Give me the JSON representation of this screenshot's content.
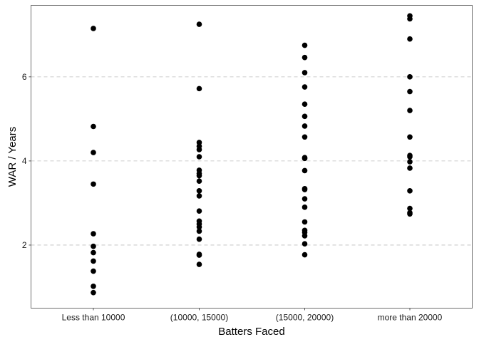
{
  "chart_data": {
    "type": "scatter",
    "title": "",
    "xlabel": "Batters Faced",
    "ylabel": "WAR / Years",
    "categories": [
      "Less than 10000",
      "(10000, 15000)",
      "(15000, 20000)",
      "more than 20000"
    ],
    "ylim": [
      0.5,
      7.7
    ],
    "yticks": [
      2,
      4,
      6
    ],
    "grid": "horizontal-major-dashed",
    "legend": "none",
    "point_color": "#000000",
    "points": [
      {
        "category": "Less than 10000",
        "values": [
          7.15,
          4.82,
          4.2,
          3.45,
          2.27,
          1.97,
          1.82,
          1.62,
          1.38,
          1.02,
          0.87
        ]
      },
      {
        "category": "(10000, 15000)",
        "values": [
          7.25,
          5.72,
          4.44,
          4.35,
          4.27,
          4.1,
          3.78,
          3.7,
          3.65,
          3.52,
          3.29,
          3.17,
          2.81,
          2.57,
          2.5,
          2.43,
          2.33,
          2.14,
          1.78,
          1.76,
          1.54
        ]
      },
      {
        "category": "(15000, 20000)",
        "values": [
          6.75,
          6.46,
          6.1,
          5.76,
          5.35,
          5.06,
          4.83,
          4.57,
          4.08,
          4.06,
          3.77,
          3.34,
          3.32,
          3.1,
          2.9,
          2.55,
          2.35,
          2.3,
          2.22,
          2.03,
          1.77
        ]
      },
      {
        "category": "more than 20000",
        "values": [
          7.45,
          7.38,
          6.9,
          6.0,
          5.65,
          5.2,
          4.57,
          4.13,
          4.1,
          3.98,
          3.83,
          3.29,
          2.87,
          2.77,
          2.74
        ]
      }
    ]
  }
}
